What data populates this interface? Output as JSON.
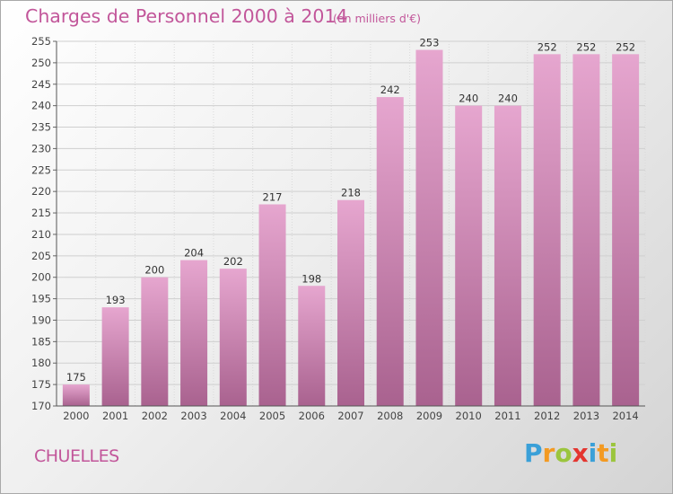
{
  "chart_data": {
    "type": "bar",
    "title": "Charges de Personnel 2000 à 2014",
    "subtitle": "(en milliers d'€)",
    "categories": [
      "2000",
      "2001",
      "2002",
      "2003",
      "2004",
      "2005",
      "2006",
      "2007",
      "2008",
      "2009",
      "2010",
      "2011",
      "2012",
      "2013",
      "2014"
    ],
    "values": [
      175,
      193,
      200,
      204,
      202,
      217,
      198,
      218,
      242,
      253,
      240,
      240,
      252,
      252,
      252
    ],
    "ylim": [
      170,
      255
    ],
    "yticks": [
      170,
      175,
      180,
      185,
      190,
      195,
      200,
      205,
      210,
      215,
      220,
      225,
      230,
      235,
      240,
      245,
      250,
      255
    ],
    "grid": true,
    "bar_color": "#d07fb2",
    "bar_color_light": "#e6a6cf",
    "bar_color_dark": "#a9628f"
  },
  "location": "CHUELLES",
  "logo": {
    "letters": [
      "P",
      "r",
      "o",
      "x",
      "i",
      "t",
      "i"
    ],
    "colors": [
      "#3aa0d8",
      "#f39a22",
      "#9bc53d",
      "#e4352f",
      "#3aa0d8",
      "#f39a22",
      "#9bc53d"
    ]
  }
}
